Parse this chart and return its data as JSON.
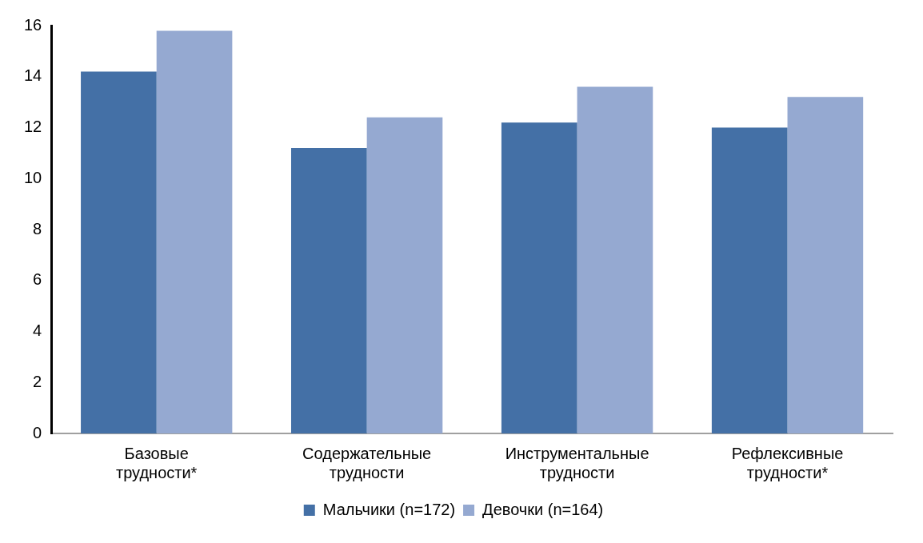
{
  "chart_data": {
    "type": "bar",
    "categories": [
      "Базовые трудности*",
      "Содержательные трудности",
      "Инструментальные трудности",
      "Рефлексивные трудности*"
    ],
    "series": [
      {
        "name": "Мальчики (n=172)",
        "color": "#4470a6",
        "values": [
          14.2,
          11.2,
          12.2,
          12.0
        ]
      },
      {
        "name": "Девочки (n=164)",
        "color": "#95a9d1",
        "values": [
          15.8,
          12.4,
          13.6,
          13.2
        ]
      }
    ],
    "ylim": [
      0,
      16
    ],
    "yticks": [
      0,
      2,
      4,
      6,
      8,
      10,
      12,
      14,
      16
    ],
    "grid": false,
    "legend": "bottom"
  }
}
